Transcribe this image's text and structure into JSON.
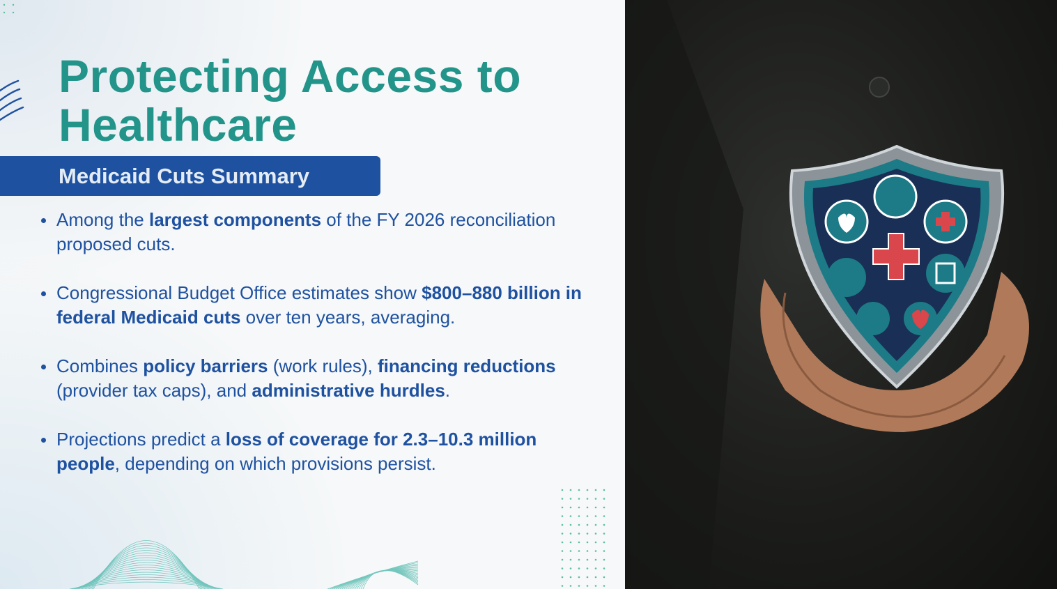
{
  "slide": {
    "title_line1": "Protecting Access to",
    "title_line2": "Healthcare",
    "subtitle": "Medicaid Cuts Summary",
    "bullets": [
      {
        "parts": [
          "Among the ",
          "largest components",
          " of the FY 2026 reconciliation proposed cuts."
        ]
      },
      {
        "parts": [
          "Congressional Budget Office estimates show ",
          "$800–880 billion in federal Medicaid cuts",
          " over ten years, averaging."
        ]
      },
      {
        "parts": [
          "Combines ",
          "policy barriers",
          " (work rules), ",
          "financing reductions",
          " (provider tax caps), and ",
          "administrative hurdles",
          "."
        ]
      },
      {
        "parts": [
          "Projections predict a ",
          "loss of coverage for 2.3–10.3 million people",
          ", depending on which provisions persist."
        ]
      }
    ]
  },
  "image": {
    "description_icons": [
      "caduceus-icon",
      "heart-pulse-icon",
      "medical-cross-icon",
      "stethoscope-heart-icon",
      "clipboard-icon",
      "heart-ecg-icon",
      "heart-cross-icon",
      "hospital-cross-icon"
    ]
  },
  "colors": {
    "title": "#23948a",
    "banner": "#1e51a0",
    "text": "#1e51a0",
    "accent_dots": "#5bbf9a"
  }
}
